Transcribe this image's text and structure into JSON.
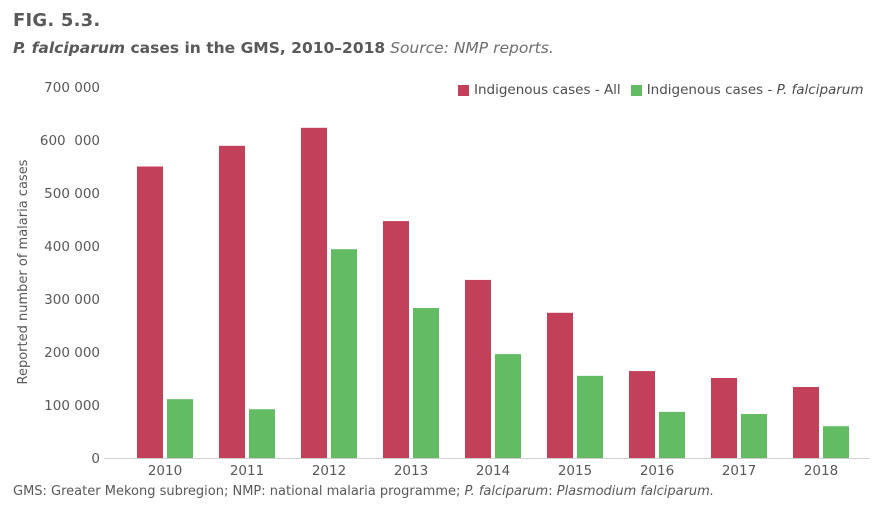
{
  "figure": {
    "label": "FIG. 5.3.",
    "title_italic": "P. falciparum",
    "title_rest": " cases in the GMS, 2010–2018",
    "source": " Source: NMP reports."
  },
  "footnote": {
    "part1": "GMS: Greater Mekong subregion; NMP: national malaria programme; ",
    "part2_italic": "P. falciparum",
    "part3": ": ",
    "part4_italic": "Plasmodium falciparum."
  },
  "legend": {
    "all_label": "Indigenous cases - All",
    "pf_prefix": "Indigenous cases - ",
    "pf_italic": "P. falciparum"
  },
  "colors": {
    "all": "#C3405A",
    "pf": "#63BC63",
    "axis": "#cfcfcf"
  },
  "chart_data": {
    "type": "bar",
    "title": "P. falciparum cases in the GMS, 2010–2018",
    "xlabel": "",
    "ylabel": "Reported number of malaria cases",
    "ylim": [
      0,
      700000
    ],
    "categories": [
      "2010",
      "2011",
      "2012",
      "2013",
      "2014",
      "2015",
      "2016",
      "2017",
      "2018"
    ],
    "yticks": [
      0,
      100000,
      200000,
      300000,
      400000,
      500000,
      600000,
      700000
    ],
    "ytick_labels": [
      "0",
      "100 000",
      "200 000",
      "300 000",
      "400 000",
      "500 000",
      "600  000",
      "700 000"
    ],
    "legend_position": "top-right",
    "grid": false,
    "series": [
      {
        "name": "Indigenous cases - All",
        "values": [
          550000,
          589000,
          623000,
          447000,
          336000,
          274000,
          164000,
          151000,
          134000
        ]
      },
      {
        "name": "Indigenous cases - P. falciparum",
        "values": [
          111000,
          92000,
          394000,
          283000,
          196000,
          155000,
          87000,
          83000,
          60000
        ]
      }
    ]
  }
}
